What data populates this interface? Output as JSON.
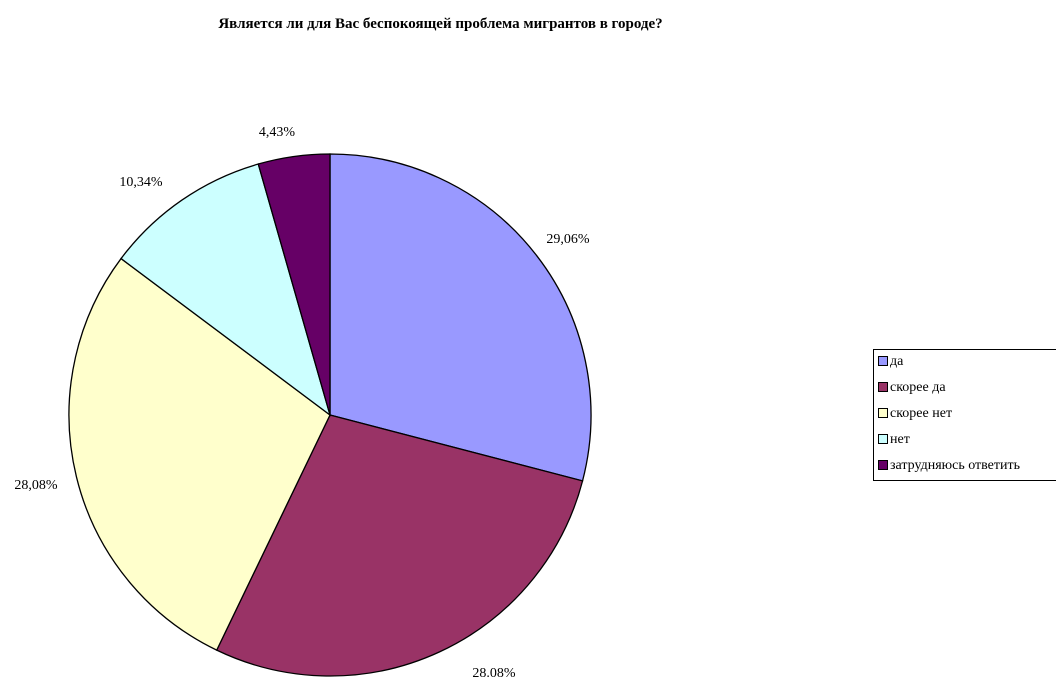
{
  "chart_data": {
    "type": "pie",
    "title": "Является ли для Вас беспокоящей проблема мигрантов в городе?",
    "categories": [
      "да",
      "скорее да",
      "скорее нет",
      "нет",
      "затрудняюсь ответить"
    ],
    "values": [
      29.06,
      28.08,
      28.08,
      10.34,
      4.43
    ],
    "value_labels": [
      "29,06%",
      "28.08%",
      "28,08%",
      "10,34%",
      "4,43%"
    ],
    "colors": [
      "#9999ff",
      "#993366",
      "#ffffcc",
      "#ccffff",
      "#660066"
    ],
    "legend": {
      "placement": "right",
      "entries": [
        "да",
        "скорее да",
        "скорее нет",
        "нет",
        "затрудняюсь ответить"
      ]
    }
  }
}
